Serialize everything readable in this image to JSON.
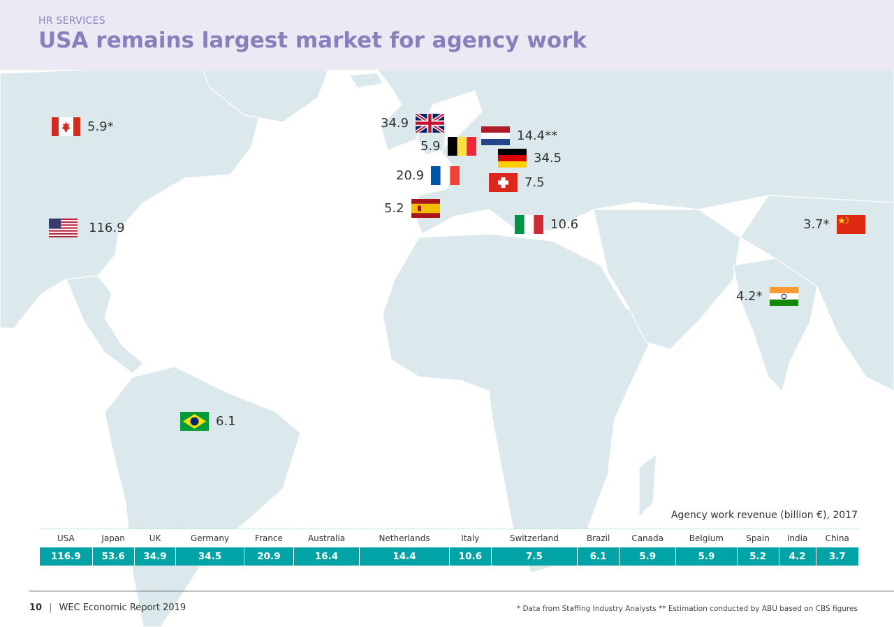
{
  "header": {
    "section_label": "HR SERVICES",
    "title": "USA remains largest market for agency work"
  },
  "markers": [
    {
      "country": "Canada",
      "label": "5.9*",
      "flag": "canada-flag-icon"
    },
    {
      "country": "USA",
      "label": "116.9",
      "flag": "usa-flag-icon"
    },
    {
      "country": "Brazil",
      "label": "6.1",
      "flag": "brazil-flag-icon"
    },
    {
      "country": "UK",
      "label": "34.9",
      "flag": "uk-flag-icon"
    },
    {
      "country": "Netherlands",
      "label": "14.4**",
      "flag": "netherlands-flag-icon"
    },
    {
      "country": "Belgium",
      "label": "5.9",
      "flag": "belgium-flag-icon"
    },
    {
      "country": "Germany",
      "label": "34.5",
      "flag": "germany-flag-icon"
    },
    {
      "country": "France",
      "label": "20.9",
      "flag": "france-flag-icon"
    },
    {
      "country": "Switzerland",
      "label": "7.5",
      "flag": "switzerland-flag-icon"
    },
    {
      "country": "Spain",
      "label": "5.2",
      "flag": "spain-flag-icon"
    },
    {
      "country": "Italy",
      "label": "10.6",
      "flag": "italy-flag-icon"
    },
    {
      "country": "China",
      "label": "3.7*",
      "flag": "china-flag-icon"
    },
    {
      "country": "India",
      "label": "4.2*",
      "flag": "india-flag-icon"
    }
  ],
  "table": {
    "caption": "Agency work revenue (billion €), 2017",
    "countries": [
      "USA",
      "Japan",
      "UK",
      "Germany",
      "France",
      "Australia",
      "Netherlands",
      "Italy",
      "Switzerland",
      "Brazil",
      "Canada",
      "Belgium",
      "Spain",
      "India",
      "China"
    ],
    "values": [
      "116.9",
      "53.6",
      "34.9",
      "34.5",
      "20.9",
      "16.4",
      "14.4",
      "10.6",
      "7.5",
      "6.1",
      "5.9",
      "5.9",
      "5.2",
      "4.2",
      "3.7"
    ]
  },
  "footer": {
    "page_number": "10",
    "separator": "|",
    "report": "WEC Economic Report 2019",
    "note": "* Data from Staffing Industry Analysts   ** Estimation conducted by ABU based on CBS figures"
  },
  "colors": {
    "header_bg": "#ece9f4",
    "title": "#8a7fbc",
    "land": "#dbe9ec",
    "table_accent": "#00a4a6"
  }
}
